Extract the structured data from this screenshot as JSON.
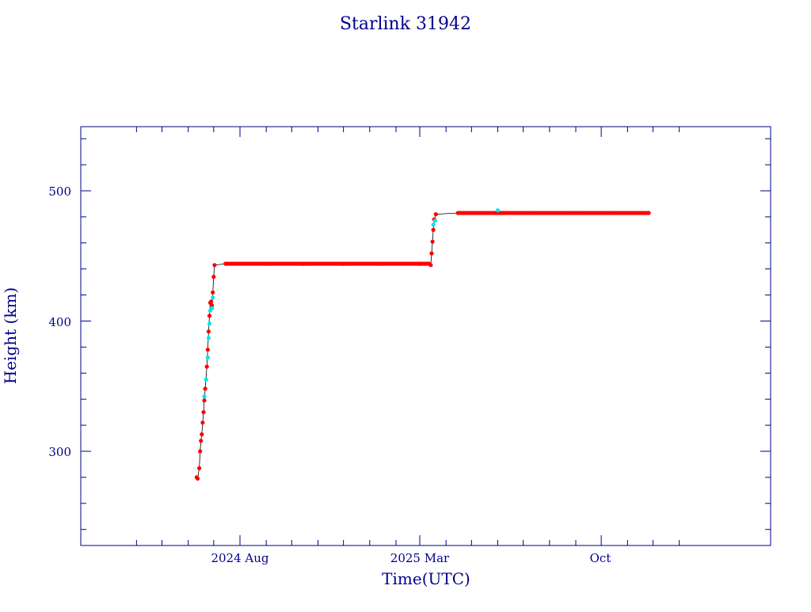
{
  "chart_data": {
    "type": "scatter",
    "title": "Starlink 31942",
    "xlabel": "Time(UTC)",
    "ylabel": "Height (km)",
    "x_tick_labels": [
      "2024 Aug",
      "2025 Mar",
      "Oct"
    ],
    "y_tick_labels": [
      "300",
      "400",
      "500"
    ],
    "y_ticks": [
      300,
      400,
      500
    ],
    "ylim": [
      230,
      550
    ],
    "xlim": [
      "2024-04-01",
      "2026-01-01"
    ],
    "grid": false,
    "colors": {
      "axes": "#00008b",
      "primary_points": "#ff0000",
      "secondary_points": "#00e5ee",
      "connector": "#000000"
    },
    "series": [
      {
        "values": [
          [
            "2024-06-11",
            280
          ],
          [
            "2024-06-12",
            279
          ],
          [
            "2024-06-14",
            287
          ],
          [
            "2024-06-15",
            300
          ],
          [
            "2024-06-16",
            308
          ],
          [
            "2024-06-17",
            313
          ],
          [
            "2024-06-18",
            322
          ],
          [
            "2024-06-19",
            330
          ],
          [
            "2024-06-20",
            339
          ],
          [
            "2024-06-21",
            348
          ],
          [
            "2024-06-23",
            365
          ],
          [
            "2024-06-24",
            378
          ],
          [
            "2024-06-25",
            392
          ],
          [
            "2024-06-26",
            404
          ],
          [
            "2024-06-27",
            414
          ],
          [
            "2024-06-28",
            415
          ],
          [
            "2024-06-29",
            412
          ],
          [
            "2024-06-30",
            422
          ],
          [
            "2024-07-01",
            434
          ],
          [
            "2024-07-02",
            443
          ],
          [
            "2024-07-15",
            444
          ],
          [
            "2024-09-01",
            444
          ],
          [
            "2024-10-15",
            444
          ],
          [
            "2024-12-01",
            444
          ],
          [
            "2025-01-15",
            444
          ],
          [
            "2025-03-01",
            444
          ],
          [
            "2025-03-12",
            444
          ],
          [
            "2025-03-14",
            443
          ],
          [
            "2025-03-15",
            452
          ],
          [
            "2025-03-16",
            461
          ],
          [
            "2025-03-17",
            470
          ],
          [
            "2025-03-18",
            478
          ],
          [
            "2025-03-20",
            482
          ],
          [
            "2025-04-15",
            483
          ],
          [
            "2025-06-01",
            483
          ],
          [
            "2025-07-15",
            483
          ],
          [
            "2025-09-01",
            483
          ],
          [
            "2025-10-15",
            483
          ],
          [
            "2025-11-26",
            483
          ]
        ]
      },
      {
        "values": [
          [
            "2024-06-20",
            342
          ],
          [
            "2024-06-22",
            355
          ],
          [
            "2024-06-24",
            372
          ],
          [
            "2024-06-25",
            387
          ],
          [
            "2024-06-26",
            398
          ],
          [
            "2024-06-27",
            408
          ],
          [
            "2024-06-29",
            410
          ],
          [
            "2024-06-30",
            418
          ],
          [
            "2025-03-17",
            474
          ],
          [
            "2025-03-19",
            477
          ],
          [
            "2025-06-01",
            485
          ]
        ]
      }
    ]
  }
}
